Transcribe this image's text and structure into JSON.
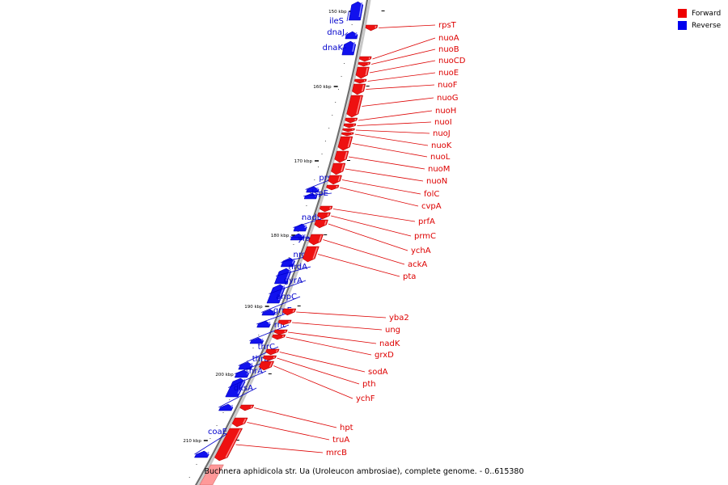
{
  "legend": {
    "forward": {
      "label": "Forward",
      "color": "#ff0000"
    },
    "reverse": {
      "label": "Reverse",
      "color": "#0000ff"
    }
  },
  "caption": "Buchnera aphidicola str. Ua (Uroleucon ambrosiae), complete genome. - 0..615380",
  "ruler": [
    "150 kbp",
    "160 kbp",
    "170 kbp",
    "180 kbp",
    "190 kbp",
    "200 kbp",
    "210 kbp"
  ],
  "forward_genes": [
    "rpsT",
    "nuoA",
    "nuoB",
    "nuoCD",
    "nuoE",
    "nuoF",
    "nuoG",
    "nuoH",
    "nuoI",
    "nuoJ",
    "nuoK",
    "nuoL",
    "nuoM",
    "nuoN",
    "folC",
    "cvpA",
    "prfA",
    "prmC",
    "ychA",
    "ackA",
    "pta",
    "yba2",
    "ung",
    "nadK",
    "grxD",
    "sodA",
    "pth",
    "ychF",
    "hpt",
    "truA",
    "mrcB"
  ],
  "reverse_genes": [
    "ileS",
    "dnaJ",
    "dnaK",
    "prs",
    "ispE",
    "nadE",
    "yfaE",
    "nrdB",
    "nrdA",
    "gyrA",
    "ahpC",
    "grpE",
    "rnt",
    "thrC",
    "thrB",
    "thrA",
    "dksA",
    "coaE"
  ]
}
